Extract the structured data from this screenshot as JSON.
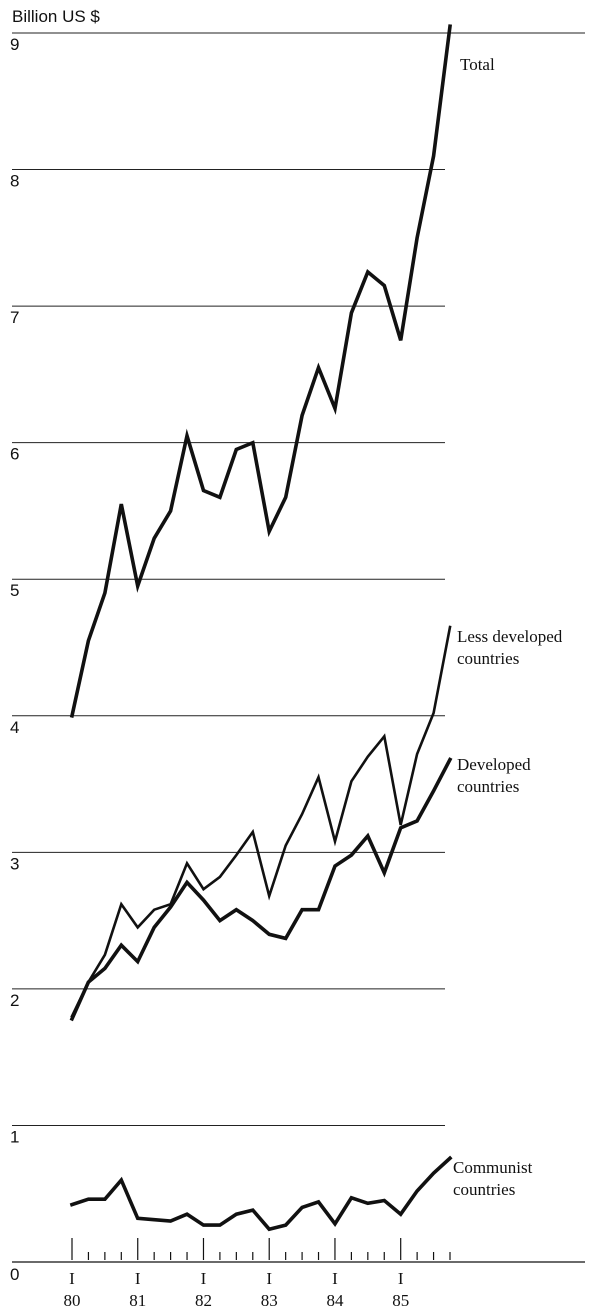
{
  "chart_data": {
    "type": "line",
    "ylabel": "Billion US $",
    "ylim": [
      0,
      9
    ],
    "y_ticks": [
      "0",
      "1",
      "2",
      "3",
      "4",
      "5",
      "6",
      "7",
      "8",
      "9"
    ],
    "x_tick_marks": [
      "I",
      "I",
      "I",
      "I",
      "I",
      "I"
    ],
    "x_tick_years": [
      "80",
      "81",
      "82",
      "83",
      "84",
      "85"
    ],
    "x_range_quarters": [
      0,
      23
    ],
    "grid": "horizontal",
    "series": [
      {
        "name": "Total",
        "label_lines": [
          "Total"
        ],
        "style": "thick",
        "values": [
          4.0,
          4.55,
          4.9,
          5.55,
          4.95,
          5.3,
          5.5,
          6.05,
          5.65,
          5.6,
          5.95,
          6.0,
          5.35,
          5.6,
          6.2,
          6.55,
          6.25,
          6.95,
          7.25,
          7.15,
          6.75,
          7.5,
          8.1,
          9.05
        ]
      },
      {
        "name": "Less developed countries",
        "label_lines": [
          "Less developed",
          "countries"
        ],
        "style": "thin",
        "values": [
          1.8,
          2.05,
          2.25,
          2.62,
          2.45,
          2.58,
          2.62,
          2.92,
          2.73,
          2.82,
          2.98,
          3.15,
          2.68,
          3.05,
          3.28,
          3.55,
          3.08,
          3.52,
          3.7,
          3.85,
          3.2,
          3.72,
          4.02,
          4.65
        ]
      },
      {
        "name": "Developed countries",
        "label_lines": [
          "Developed",
          "countries"
        ],
        "style": "thick",
        "values": [
          1.78,
          2.05,
          2.15,
          2.32,
          2.2,
          2.45,
          2.6,
          2.78,
          2.65,
          2.5,
          2.58,
          2.5,
          2.4,
          2.37,
          2.58,
          2.58,
          2.9,
          2.98,
          3.12,
          2.85,
          3.18,
          3.23,
          3.45,
          3.68
        ]
      },
      {
        "name": "Communist countries",
        "label_lines": [
          "Communist",
          "countries"
        ],
        "style": "thick",
        "values": [
          0.42,
          0.46,
          0.46,
          0.6,
          0.32,
          0.31,
          0.3,
          0.35,
          0.27,
          0.27,
          0.35,
          0.38,
          0.24,
          0.27,
          0.4,
          0.44,
          0.28,
          0.47,
          0.43,
          0.45,
          0.35,
          0.52,
          0.65,
          0.76
        ]
      }
    ]
  }
}
